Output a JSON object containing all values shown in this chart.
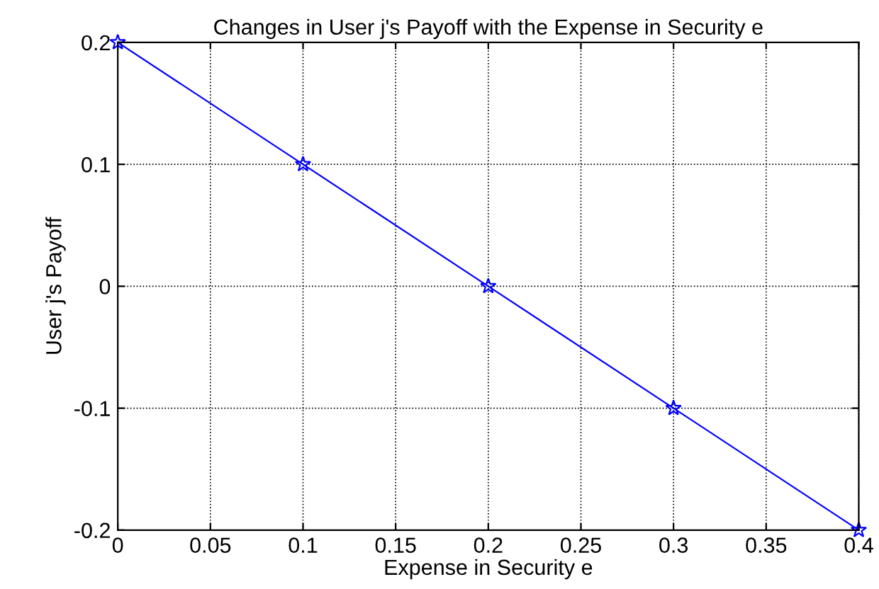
{
  "chart_data": {
    "type": "line",
    "title": "Changes in User j's Payoff with the Expense in Security e",
    "xlabel": "Expense in Security e",
    "ylabel": "User j's Payoff",
    "x": [
      0,
      0.1,
      0.2,
      0.3,
      0.4
    ],
    "series": [
      {
        "color": "#0000ff",
        "values": [
          0.2,
          0.1,
          0,
          -0.1,
          -0.2
        ]
      }
    ],
    "marker": "star",
    "line_style": "solid",
    "grid": true,
    "xlim": [
      0,
      0.4
    ],
    "xticks": [
      0,
      0.05,
      0.1,
      0.15,
      0.2,
      0.25,
      0.3,
      0.35,
      0.4
    ],
    "ylim": [
      -0.2,
      0.2
    ],
    "yticks": [
      -0.2,
      -0.1,
      0,
      0.1,
      0.2
    ]
  }
}
